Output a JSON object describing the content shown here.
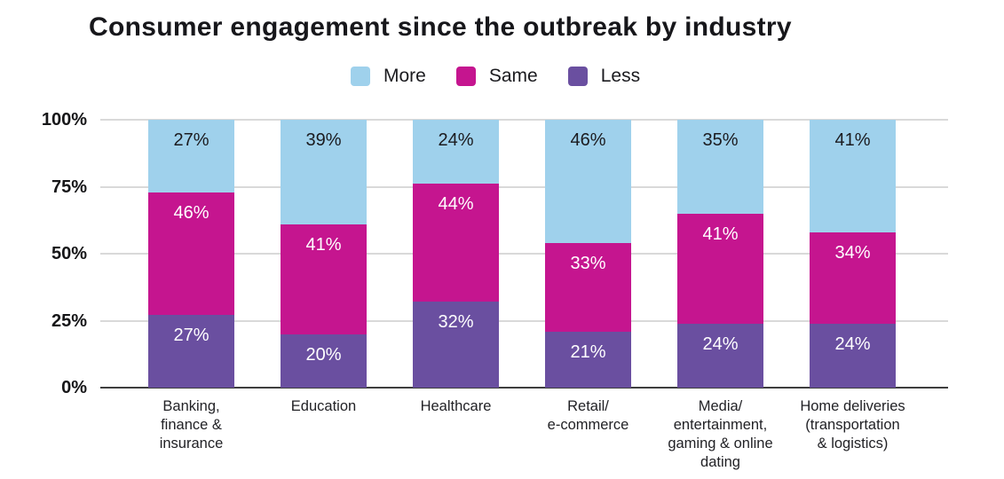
{
  "chart_data": {
    "type": "bar",
    "stacked": true,
    "title": "Consumer engagement since the outbreak by industry",
    "categories": [
      "Banking,\nfinance &\ninsurance",
      "Education",
      "Healthcare",
      "Retail/\ne-commerce",
      "Media/\nentertainment,\ngaming & online\ndating",
      "Home deliveries\n(transportation\n& logistics)"
    ],
    "series": [
      {
        "name": "More",
        "color": "#9fd1ec",
        "values": [
          27,
          39,
          24,
          46,
          35,
          41
        ]
      },
      {
        "name": "Same",
        "color": "#c5158f",
        "values": [
          46,
          41,
          44,
          33,
          41,
          34
        ]
      },
      {
        "name": "Less",
        "color": "#6a4fa0",
        "values": [
          27,
          20,
          32,
          21,
          24,
          24
        ]
      }
    ],
    "y_ticks": [
      "0%",
      "25%",
      "50%",
      "75%",
      "100%"
    ],
    "ylim": [
      0,
      100
    ],
    "grid": true,
    "legend_position": "top",
    "value_suffix": "%",
    "value_label_colors": {
      "More": "#1b1b1f",
      "Same": "#ffffff",
      "Less": "#ffffff"
    },
    "axis_colors": {
      "gridline": "#d9d9d9",
      "axis_line": "#3e3e3e"
    }
  }
}
